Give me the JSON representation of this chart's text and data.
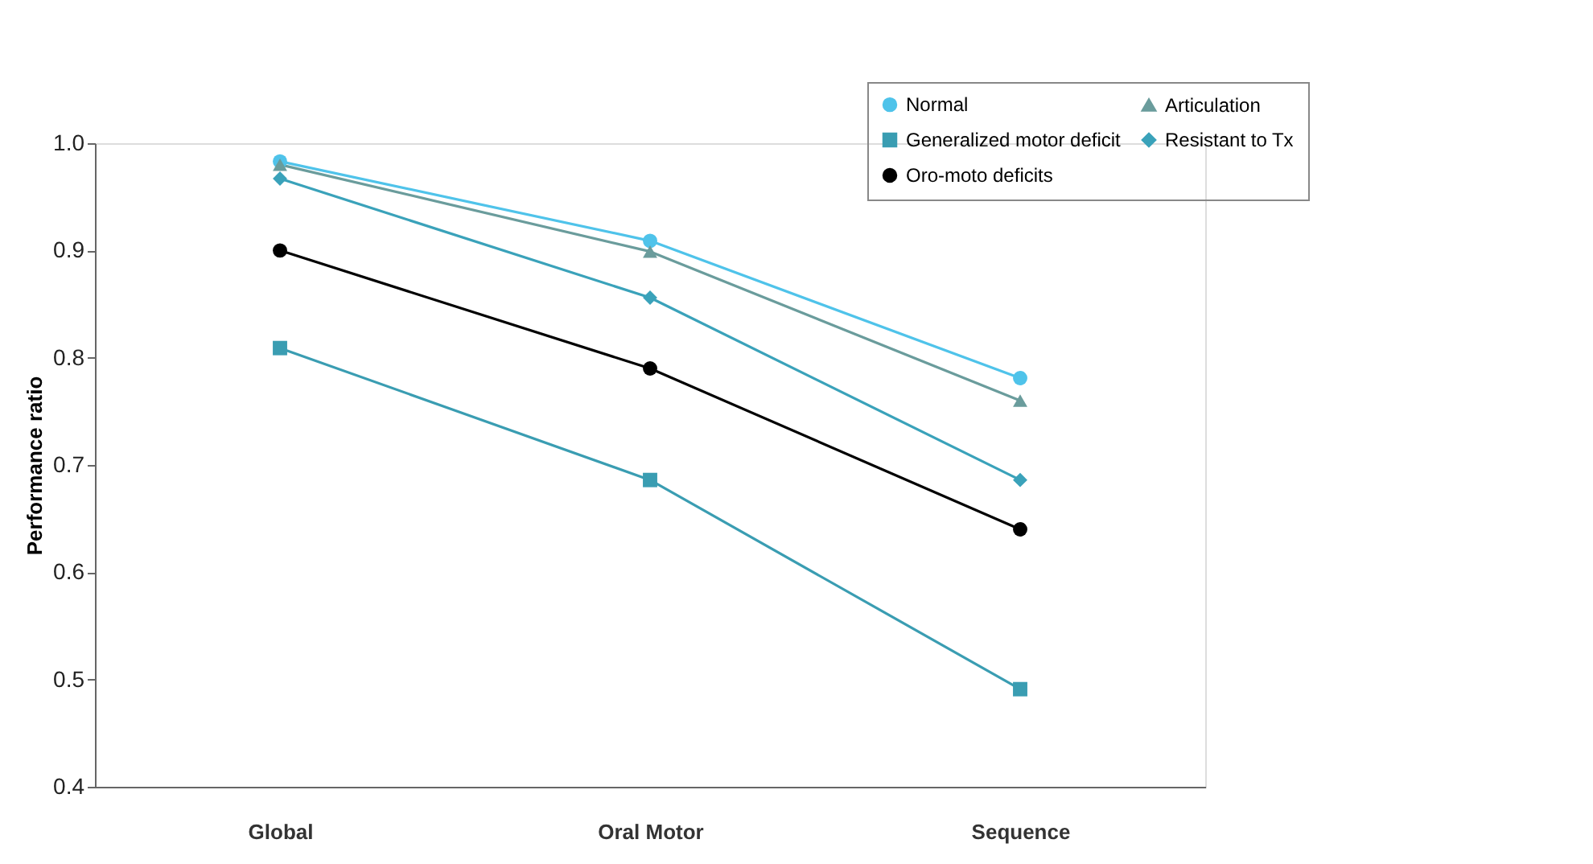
{
  "chart_data": {
    "type": "line",
    "ylabel": "Performance ratio",
    "categories": [
      "Global",
      "Oral Motor",
      "Sequence"
    ],
    "series": [
      {
        "name": "Normal",
        "color": "#4fc3ea",
        "marker": "circle",
        "values": [
          0.983,
          0.909,
          0.781
        ]
      },
      {
        "name": "Articulation",
        "color": "#6a9c9c",
        "marker": "triangle",
        "values": [
          0.98,
          0.899,
          0.76
        ]
      },
      {
        "name": "Generalized motor deficit",
        "color": "#3a9db2",
        "marker": "square",
        "values": [
          0.809,
          0.686,
          0.491
        ]
      },
      {
        "name": "Resistant to Tx",
        "color": "#3aa2ba",
        "marker": "diamond",
        "values": [
          0.967,
          0.856,
          0.686
        ]
      },
      {
        "name": "Oro-moto deficits",
        "color": "#000000",
        "marker": "circle",
        "values": [
          0.9,
          0.79,
          0.64
        ]
      }
    ],
    "ylim": [
      0.4,
      1.0
    ],
    "yticks": [
      0.4,
      0.5,
      0.6,
      0.7,
      0.8,
      0.9,
      {
        "value": 1.0,
        "label": "1.0"
      }
    ],
    "grid": false,
    "legend": "top right",
    "line_style": "solid"
  }
}
